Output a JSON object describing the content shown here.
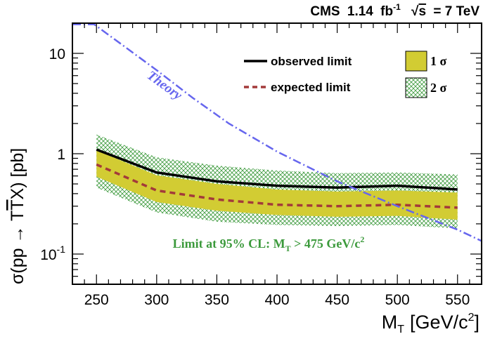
{
  "chart_data": {
    "type": "line",
    "title": "CMS 1.14 fb⁻¹  √s = 7 TeV",
    "header": {
      "experiment": "CMS",
      "lumi_value": "1.14",
      "lumi_unit": "fb",
      "lumi_exp": "-1",
      "energy_sqrt": "s",
      "energy_rest": "= 7 TeV"
    },
    "xlabel": {
      "text": "M",
      "sub": "T",
      "unit": "[GeV/c",
      "sup": "2",
      "close": "]"
    },
    "ylabel": {
      "text": "σ(pp → T",
      "tbar": "T",
      "rest": "X) [pb]"
    },
    "xlim": [
      230,
      570
    ],
    "ylim": [
      0.05,
      20
    ],
    "yscale": "log",
    "x_ticks": [
      250,
      300,
      350,
      400,
      450,
      500,
      550
    ],
    "x_tick_labels": [
      "250",
      "300",
      "350",
      "400",
      "450",
      "500",
      "550"
    ],
    "y_tick_labels": [
      {
        "v": 10,
        "base": "10",
        "sup": ""
      },
      {
        "v": 1,
        "base": "1",
        "sup": ""
      },
      {
        "v": 0.1,
        "base": "10",
        "sup": "-1"
      }
    ],
    "x": [
      250,
      300,
      350,
      400,
      450,
      500,
      550
    ],
    "series": [
      {
        "name": "observed limit",
        "color": "#000000",
        "style": "solid",
        "values": [
          1.1,
          0.65,
          0.53,
          0.48,
          0.46,
          0.48,
          0.44
        ]
      },
      {
        "name": "expected limit",
        "color": "#a33a3a",
        "style": "dashed",
        "values": [
          0.78,
          0.43,
          0.35,
          0.31,
          0.3,
          0.31,
          0.29
        ]
      }
    ],
    "bands": [
      {
        "name": "2 σ",
        "color": "#3c9a3c",
        "pattern": "crosshatch",
        "lower": [
          0.46,
          0.26,
          0.21,
          0.195,
          0.19,
          0.195,
          0.18
        ],
        "upper": [
          1.55,
          0.92,
          0.76,
          0.68,
          0.64,
          0.65,
          0.62
        ]
      },
      {
        "name": "1 σ",
        "color": "#d2cc33",
        "pattern": "solid",
        "lower": [
          0.59,
          0.33,
          0.27,
          0.245,
          0.235,
          0.24,
          0.22
        ],
        "upper": [
          1.08,
          0.61,
          0.5,
          0.44,
          0.42,
          0.43,
          0.41
        ]
      }
    ],
    "theory": {
      "name": "Theory",
      "color": "#6666ee",
      "style": "dash-dot",
      "x": [
        230,
        248,
        270,
        300,
        330,
        360,
        400,
        450,
        500,
        550,
        570
      ],
      "values": [
        19.5,
        19.5,
        12.5,
        6.8,
        3.6,
        2.0,
        1.05,
        0.53,
        0.3,
        0.175,
        0.135
      ]
    },
    "annotation": {
      "text": "Limit at 95% CL: M",
      "sub": "T",
      "rest": " > 475 GeV/c",
      "sup": "2",
      "color": "#3c9a3c"
    },
    "legend": {
      "placement": "top-right"
    },
    "grid": false
  }
}
